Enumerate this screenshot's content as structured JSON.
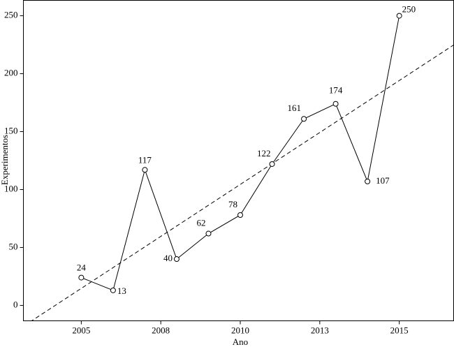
{
  "chart_data": {
    "type": "line",
    "x": [
      2005,
      2006,
      2007,
      2008,
      2009,
      2010,
      2011,
      2012,
      2013,
      2014,
      2015
    ],
    "values": [
      24,
      13,
      117,
      40,
      62,
      78,
      122,
      161,
      174,
      107,
      250
    ],
    "value_labels": [
      "24",
      "13",
      "117",
      "40",
      "62",
      "78",
      "122",
      "161",
      "174",
      "107",
      "250"
    ],
    "color": "#000000",
    "trend": {
      "x": [
        2003.2,
        2016.7
      ],
      "values": [
        -17.6,
        224.6
      ],
      "color": "#000000"
    },
    "xlabel": "Ano",
    "ylabel": "Experimentos",
    "xlim": [
      2003.18,
      2016.71
    ],
    "xticks": [
      2005,
      {
        "value": 2007.5,
        "label": "2008"
      },
      2010,
      {
        "value": 2012.5,
        "label": "2013"
      },
      2015
    ],
    "ylim": [
      -13.3,
      263.3
    ],
    "yticks": [
      0,
      50,
      100,
      150,
      200,
      250
    ]
  }
}
